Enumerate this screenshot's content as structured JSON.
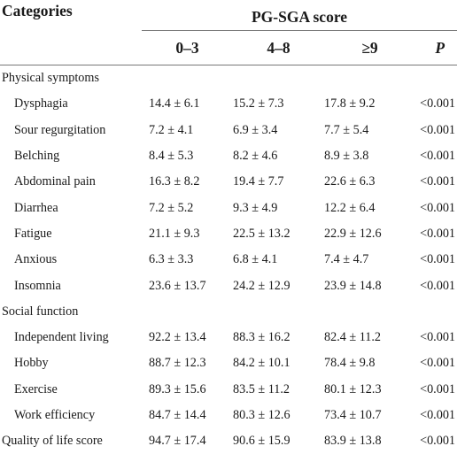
{
  "header": {
    "categories_label": "Categories",
    "group_label": "PG-SGA score",
    "columns": [
      "0–3",
      "4–8",
      "≥9",
      "P"
    ]
  },
  "sections": [
    {
      "title": "Physical symptoms",
      "rows": [
        {
          "label": "Dysphagia",
          "values": [
            "14.4 ± 6.1",
            "15.2 ± 7.3",
            "17.8 ± 9.2",
            "<0.001"
          ]
        },
        {
          "label": "Sour regurgitation",
          "values": [
            "7.2 ± 4.1",
            "6.9 ± 3.4",
            "7.7 ± 5.4",
            "<0.001"
          ]
        },
        {
          "label": "Belching",
          "values": [
            "8.4 ± 5.3",
            "8.2 ± 4.6",
            "8.9 ± 3.8",
            "<0.001"
          ]
        },
        {
          "label": "Abdominal pain",
          "values": [
            "16.3 ± 8.2",
            "19.4 ± 7.7",
            "22.6 ± 6.3",
            "<0.001"
          ]
        },
        {
          "label": "Diarrhea",
          "values": [
            "7.2 ± 5.2",
            "9.3 ± 4.9",
            "12.2 ± 6.4",
            "<0.001"
          ]
        },
        {
          "label": "Fatigue",
          "values": [
            "21.1 ± 9.3",
            "22.5 ± 13.2",
            "22.9 ± 12.6",
            "<0.001"
          ]
        },
        {
          "label": "Anxious",
          "values": [
            "6.3 ± 3.3",
            "6.8 ± 4.1",
            "7.4 ± 4.7",
            "<0.001"
          ]
        },
        {
          "label": "Insomnia",
          "values": [
            "23.6 ± 13.7",
            "24.2 ± 12.9",
            "23.9 ± 14.8",
            "<0.001"
          ]
        }
      ]
    },
    {
      "title": "Social function",
      "rows": [
        {
          "label": "Independent living",
          "values": [
            "92.2 ± 13.4",
            "88.3 ± 16.2",
            "82.4 ± 11.2",
            "<0.001"
          ]
        },
        {
          "label": "Hobby",
          "values": [
            "88.7 ± 12.3",
            "84.2 ± 10.1",
            "78.4 ± 9.8",
            "<0.001"
          ]
        },
        {
          "label": "Exercise",
          "values": [
            "89.3 ± 15.6",
            "83.5 ± 11.2",
            "80.1 ± 12.3",
            "<0.001"
          ]
        },
        {
          "label": "Work efficiency",
          "values": [
            "84.7 ± 14.4",
            "80.3 ± 12.6",
            "73.4 ± 10.7",
            "<0.001"
          ]
        }
      ]
    }
  ],
  "summary_row": {
    "label": "Quality of life score",
    "values": [
      "94.7 ± 17.4",
      "90.6 ± 15.9",
      "83.9 ± 13.8",
      "<0.001"
    ]
  }
}
